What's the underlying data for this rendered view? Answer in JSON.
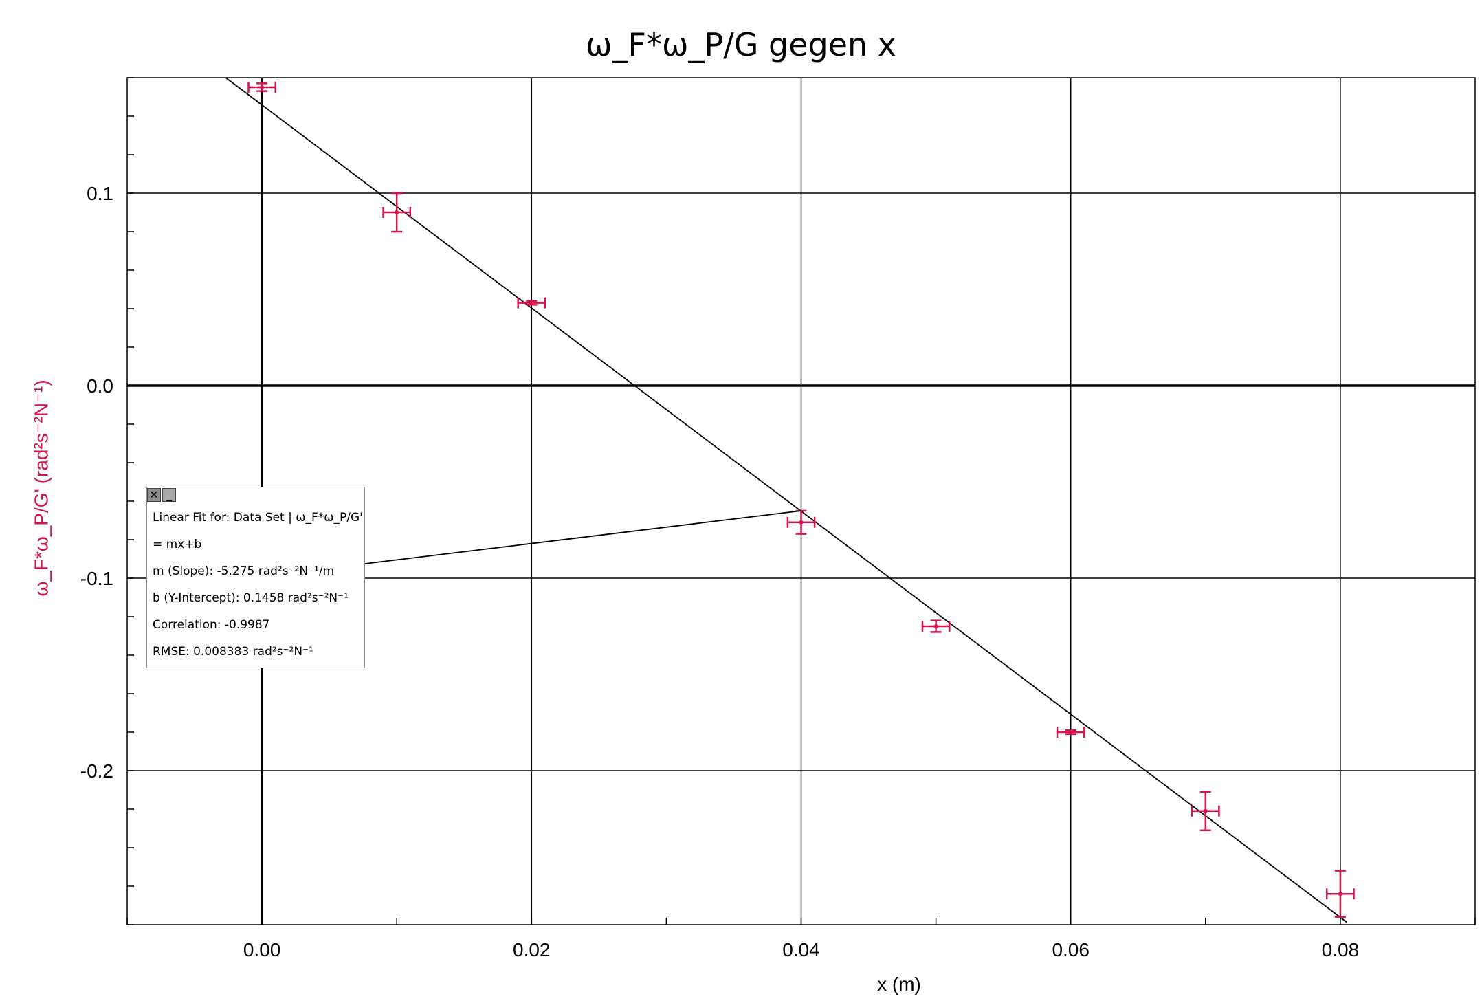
{
  "chart_data": {
    "type": "scatter",
    "title": "ω_F*ω_P/G gegen x",
    "xlabel": "x (m)",
    "ylabel": "ω_F*ω_P/G' (rad²s⁻²N⁻¹)",
    "xlim": [
      -0.01,
      0.09
    ],
    "ylim": [
      -0.28,
      0.16
    ],
    "x_ticks": [
      0.0,
      0.02,
      0.04,
      0.06,
      0.08
    ],
    "x_tick_labels": [
      "0.00",
      "0.02",
      "0.04",
      "0.06",
      "0.08"
    ],
    "y_ticks": [
      0.1,
      0.0,
      -0.1,
      -0.2
    ],
    "y_tick_labels": [
      "0.1",
      "0.0",
      "-0.1",
      "-0.2"
    ],
    "grid": true,
    "series": [
      {
        "color": "#d4154a",
        "x": [
          0.0,
          0.01,
          0.02,
          0.04,
          0.05,
          0.06,
          0.07,
          0.08
        ],
        "y": [
          0.155,
          0.09,
          0.043,
          -0.071,
          -0.125,
          -0.18,
          -0.221,
          -0.264
        ],
        "x_err": [
          0.001,
          0.001,
          0.001,
          0.001,
          0.001,
          0.001,
          0.001,
          0.001
        ],
        "y_err": [
          0.002,
          0.01,
          0.001,
          0.006,
          0.003,
          0.001,
          0.01,
          0.012
        ]
      }
    ],
    "fit_line": {
      "slope": -5.275,
      "intercept": 0.1458,
      "x_range": [
        -0.0027,
        0.0805
      ]
    }
  },
  "fit_box": {
    "close_symbol": "✕",
    "minimize_symbol": "_",
    "line1": "Linear Fit for: Data Set | ω_F*ω_P/G'",
    "line2": " = mx+b",
    "line3": "m (Slope): -5.275 rad²s⁻²N⁻¹/m",
    "line4": "b (Y-Intercept): 0.1458 rad²s⁻²N⁻¹",
    "line5": "Correlation: -0.9987",
    "line6": "RMSE: 0.008383 rad²s⁻²N⁻¹",
    "anchor_x": 0.04,
    "anchor_y": -0.065
  }
}
